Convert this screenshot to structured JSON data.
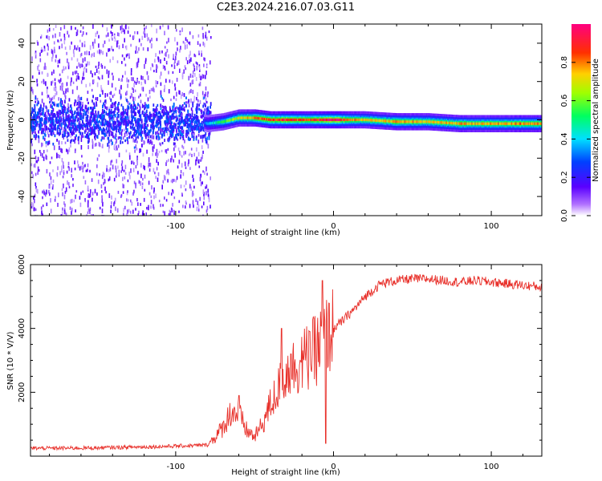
{
  "title": "C2E3.2024.216.07.03.G11",
  "chart_data": [
    {
      "type": "heatmap",
      "xlabel": "Height of straight line (km)",
      "ylabel": "Frequency (Hz)",
      "xlim": [
        -192,
        132
      ],
      "ylim": [
        -50,
        50
      ],
      "xticks": [
        -100,
        0,
        100
      ],
      "xtick_labels": [
        "-100",
        "0",
        "100"
      ],
      "yticks": [
        -40,
        -20,
        0,
        20,
        40
      ],
      "ytick_labels": [
        "-40",
        "-20",
        "0",
        "20",
        "40"
      ],
      "colorbar": {
        "label": "Normalized spectral amplitude",
        "range": [
          0,
          1
        ],
        "ticks": [
          0.0,
          0.2,
          0.4,
          0.6,
          0.8
        ],
        "tick_labels": [
          "0.0",
          "0.2",
          "0.4",
          "0.6",
          "0.8"
        ],
        "colormap": [
          "#ffffff",
          "#5a00ff",
          "#0040ff",
          "#00e0ff",
          "#00ff40",
          "#c0ff00",
          "#ffc000",
          "#ff2000",
          "#ff0080"
        ]
      },
      "ridge": {
        "x": [
          -190,
          -150,
          -110,
          -90,
          -80,
          -70,
          -60,
          -50,
          -40,
          -30,
          -20,
          -10,
          0,
          20,
          40,
          60,
          80,
          100,
          120,
          130
        ],
        "y": [
          0,
          0,
          0,
          0,
          -2,
          -1,
          1,
          1,
          0,
          0,
          0,
          0,
          0,
          0,
          -1,
          -1,
          -2,
          -2,
          -2,
          -2
        ],
        "peak_amplitude": [
          0.12,
          0.15,
          0.15,
          0.18,
          0.35,
          0.55,
          0.7,
          0.85,
          0.95,
          0.95,
          0.9,
          0.95,
          1.0,
          0.75,
          0.8,
          0.75,
          0.8,
          0.8,
          0.85,
          0.8
        ]
      },
      "noise_region_x": [
        -192,
        -78
      ],
      "grid": false
    },
    {
      "type": "line",
      "xlabel": "Height of straight line (km)",
      "ylabel": "SNR (10 * V/V)",
      "xlim": [
        -192,
        132
      ],
      "ylim": [
        0,
        6000
      ],
      "xticks": [
        -100,
        0,
        100
      ],
      "xtick_labels": [
        "-100",
        "0",
        "100"
      ],
      "yticks": [
        2000,
        4000,
        6000
      ],
      "ytick_labels": [
        "2000",
        "4000",
        "6000"
      ],
      "series": [
        {
          "color": "#e8302a",
          "x": [
            -192,
            -170,
            -150,
            -130,
            -110,
            -90,
            -80,
            -75,
            -70,
            -65,
            -60,
            -55,
            -50,
            -45,
            -40,
            -35,
            -30,
            -25,
            -20,
            -15,
            -10,
            -5,
            0,
            5,
            10,
            15,
            20,
            25,
            30,
            40,
            50,
            60,
            70,
            80,
            90,
            100,
            110,
            120,
            132
          ],
          "y": [
            250,
            250,
            260,
            280,
            300,
            330,
            350,
            600,
            900,
            1400,
            1300,
            800,
            600,
            1000,
            1600,
            2100,
            2600,
            2800,
            3000,
            3100,
            3400,
            3700,
            4000,
            4200,
            4450,
            4700,
            5000,
            5200,
            5400,
            5500,
            5550,
            5550,
            5500,
            5450,
            5500,
            5450,
            5400,
            5350,
            5300
          ]
        }
      ],
      "spikes": [
        {
          "x": -60,
          "y": 1900
        },
        {
          "x": -33,
          "y": 4000
        },
        {
          "x": -27,
          "y": 3200
        },
        {
          "x": -15,
          "y": 3900
        },
        {
          "x": -7,
          "y": 5500
        },
        {
          "x": -5,
          "y": 400
        }
      ],
      "grid": false
    }
  ]
}
